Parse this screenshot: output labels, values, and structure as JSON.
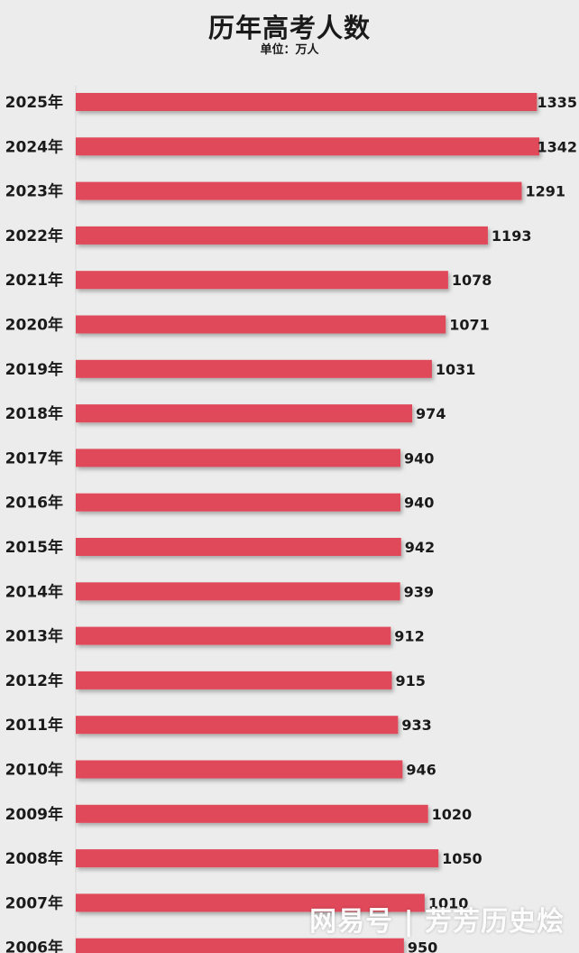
{
  "chart_data": {
    "type": "bar",
    "orientation": "horizontal",
    "title": "历年高考人数",
    "subtitle": "单位：万人",
    "categories": [
      "2025年",
      "2024年",
      "2023年",
      "2022年",
      "2021年",
      "2020年",
      "2019年",
      "2018年",
      "2017年",
      "2016年",
      "2015年",
      "2014年",
      "2013年",
      "2012年",
      "2011年",
      "2010年",
      "2009年",
      "2008年",
      "2007年",
      "2006年"
    ],
    "values": [
      1335,
      1342,
      1291,
      1193,
      1078,
      1071,
      1031,
      974,
      940,
      940,
      942,
      939,
      912,
      915,
      933,
      946,
      1020,
      1050,
      1010,
      950
    ],
    "bar_color": "#e04a5a",
    "xlim": [
      0,
      1342
    ],
    "grid": false,
    "legend": "none"
  },
  "watermark": "网易号 | 芳芳历史烩"
}
